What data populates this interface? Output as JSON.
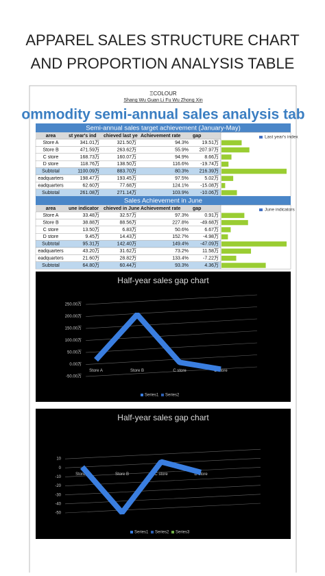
{
  "header": {
    "title_lines": [
      "APPAREL SALES STRUCTURE CHART",
      "AND PROPORTION ANALYSIS TABLE"
    ]
  },
  "document": {
    "brand": "ΞCOLOUR",
    "subtitle": "Shang Wu Guan Li Fu Wu Zhong Xin",
    "title": "ommodity semi-annual sales analysis tab"
  },
  "tables": [
    {
      "section_title": "Semi-annual sales target achievement (January-May)",
      "columns": [
        "area",
        "st year's ind",
        "chieved last ye",
        "Achievement rate",
        "gap"
      ],
      "rows": [
        [
          "Store A",
          "341.01万",
          "321.50万",
          "94.3%",
          "19.51万"
        ],
        [
          "Store B",
          "471.59万",
          "263.62万",
          "55.9%",
          "207.97万"
        ],
        [
          "C store",
          "168.73万",
          "160.07万",
          "94.9%",
          "8.66万"
        ],
        [
          "D store",
          "118.76万",
          "138.50万",
          "116.6%",
          "-19.74万"
        ],
        [
          "Subtotal",
          "1100.09万",
          "883.70万",
          "80.3%",
          "216.39万"
        ],
        [
          "eadquarters",
          "198.47万",
          "193.45万",
          "97.5%",
          "5.02万"
        ],
        [
          "eadquarters",
          "62.60万",
          "77.68万",
          "124.1%",
          "-15.08万"
        ],
        [
          "Subtotal",
          "261.08万",
          "271.14万",
          "103.9%",
          "-10.06万"
        ]
      ],
      "bar_values": [
        341.01,
        471.59,
        168.73,
        118.76,
        1100.09,
        198.47,
        62.6,
        261.08
      ],
      "bar_legend": "Last year's index",
      "bar_color": "#9acd32"
    },
    {
      "section_title": "Sales Achievement in June",
      "columns": [
        "area",
        "une indicator",
        "chieved in June",
        "Achievement rate",
        "gap"
      ],
      "rows": [
        [
          "Store A",
          "33.48万",
          "32.57万",
          "97.3%",
          "0.91万"
        ],
        [
          "Store B",
          "38.88万",
          "88.56万",
          "227.8%",
          "-49.68万"
        ],
        [
          "C store",
          "13.50万",
          "6.83万",
          "50.6%",
          "6.67万"
        ],
        [
          "D store",
          "9.45万",
          "14.43万",
          "152.7%",
          "-4.98万"
        ],
        [
          "Subtotal",
          "95.31万",
          "142.40万",
          "149.4%",
          "-47.09万"
        ],
        [
          "eadquarters",
          "43.20万",
          "31.62万",
          "73.2%",
          "11.58万"
        ],
        [
          "eadquarters",
          "21.60万",
          "28.82万",
          "133.4%",
          "-7.22万"
        ],
        [
          "Subtotal",
          "64.80万",
          "60.44万",
          "93.3%",
          "4.36万"
        ]
      ],
      "bar_values": [
        33.48,
        38.88,
        13.5,
        9.45,
        95.31,
        43.2,
        21.6,
        64.8
      ],
      "bar_legend": "June indicators",
      "bar_color": "#9acd32"
    }
  ],
  "charts": [
    {
      "type": "line",
      "title": "Half-year sales gap chart",
      "categories": [
        "Store A",
        "Store B",
        "C store",
        "D store"
      ],
      "series": [
        {
          "name": "Series1",
          "color": "#3a7ee0",
          "values": [
            19.51,
            207.97,
            8.66,
            -19.74
          ]
        },
        {
          "name": "Series2",
          "color": "#2e5fb0",
          "values": [
            null,
            null,
            null,
            null
          ]
        }
      ],
      "ylim": [
        -50,
        250
      ],
      "yticks": [
        {
          "value": -50,
          "label": "-50.00万"
        },
        {
          "value": 0,
          "label": "0.00万"
        },
        {
          "value": 50,
          "label": "50.00万"
        },
        {
          "value": 100,
          "label": "100.00万"
        },
        {
          "value": 150,
          "label": "150.00万"
        },
        {
          "value": 200,
          "label": "200.00万"
        },
        {
          "value": 250,
          "label": "250.00万"
        }
      ],
      "grid": true
    },
    {
      "type": "line",
      "title": "Half-year sales gap chart",
      "categories": [
        "Store A",
        "Store B",
        "C store",
        "D store"
      ],
      "series": [
        {
          "name": "Series1",
          "color": "#3a7ee0",
          "values": [
            0.91,
            -49.68,
            6.67,
            -4.98
          ]
        },
        {
          "name": "Series2",
          "color": "#2e5fb0",
          "values": [
            null,
            null,
            null,
            null
          ]
        },
        {
          "name": "Series3",
          "color": "#70ad47",
          "values": [
            null,
            null,
            null,
            null
          ]
        }
      ],
      "ylim": [
        -50,
        20
      ],
      "yticks": [
        -50,
        -40,
        -30,
        -20,
        -10,
        0,
        10
      ],
      "grid": true
    }
  ]
}
